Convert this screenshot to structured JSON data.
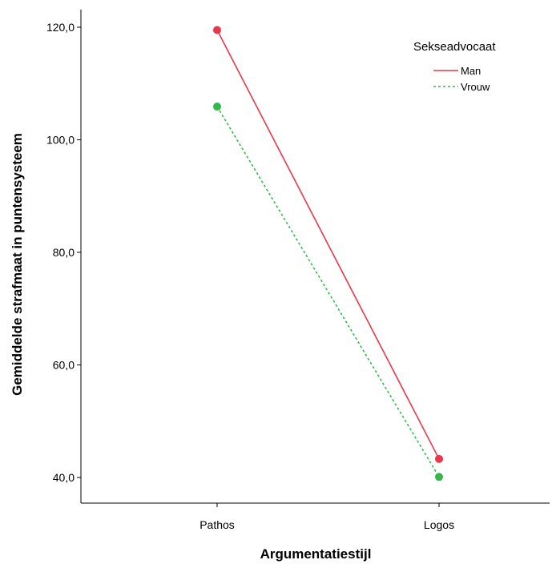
{
  "chart_data": {
    "type": "line",
    "title": "",
    "xlabel": "Argumentatiestijl",
    "ylabel": "Gemiddelde strafmaat in puntensysteem",
    "categories": [
      "Pathos",
      "Logos"
    ],
    "ylim": [
      35,
      123
    ],
    "yticks": [
      40,
      60,
      80,
      100,
      120
    ],
    "ytick_labels": [
      "40,0",
      "60,0",
      "80,0",
      "100,0",
      "120,0"
    ],
    "grid": false,
    "legend": {
      "title": "Sekseadvocaat",
      "position": "top-right"
    },
    "series": [
      {
        "name": "Man",
        "values": [
          119.5,
          43.3
        ],
        "color": "#e8384a",
        "line_style": "solid"
      },
      {
        "name": "Vrouw",
        "values": [
          105.9,
          40.1
        ],
        "color": "#34b84a",
        "line_style": "dashed"
      }
    ]
  }
}
